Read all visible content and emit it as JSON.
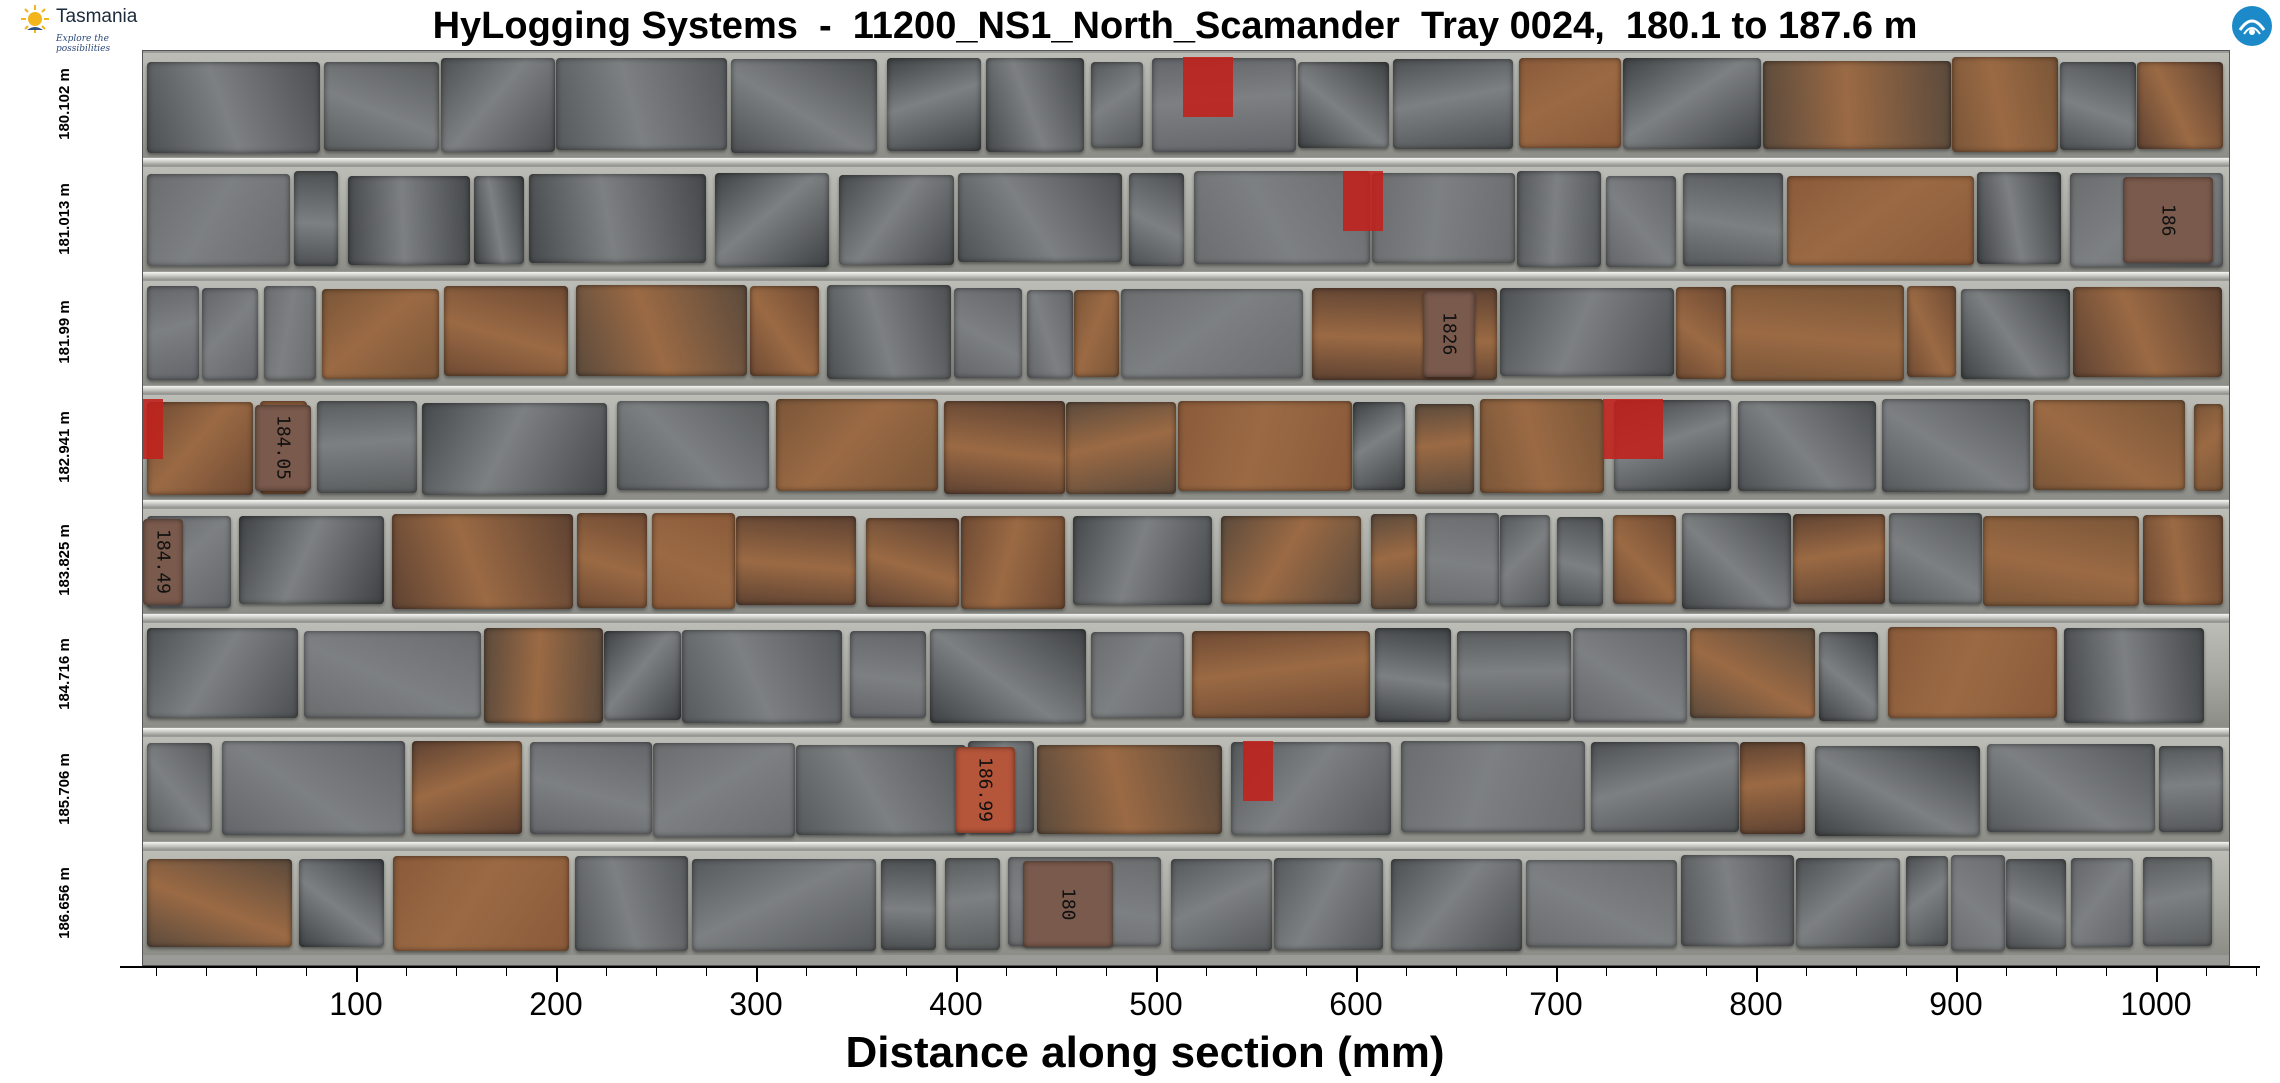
{
  "header": {
    "brand_name": "Tasmania",
    "brand_tagline": "Explore the possibilities",
    "title": "HyLogging Systems  -  11200_NS1_North_Scamander  Tray 0024,  180.1 to 187.6 m",
    "partner_logo": "csiro-logo"
  },
  "depth_labels": [
    "180.102 m",
    "181.013 m",
    "181.99 m",
    "182.941 m",
    "183.825 m",
    "184.716 m",
    "185.706 m",
    "186.656 m"
  ],
  "core_markers": [
    "1826",
    "184.05",
    "184.49",
    "186.99",
    "180",
    "186"
  ],
  "x_axis": {
    "tick_labels": [
      "100",
      "200",
      "300",
      "400",
      "500",
      "600",
      "700",
      "800",
      "900",
      "1000"
    ],
    "label": "Distance along section (mm)"
  },
  "colors": {
    "tray_bg": "#9a9a96",
    "core_grey": "#55585a",
    "core_brown": "#6e4a33",
    "marker_red": "#c0221d"
  }
}
